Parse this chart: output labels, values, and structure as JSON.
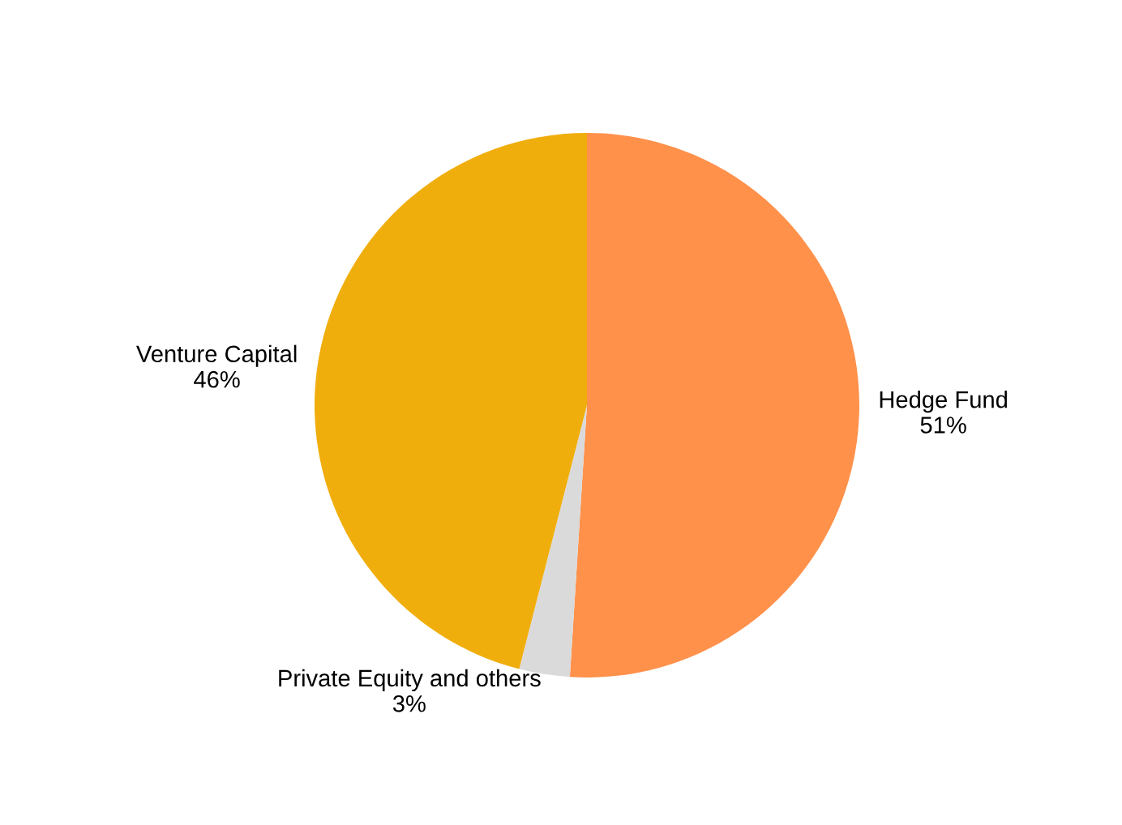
{
  "chart_data": {
    "type": "pie",
    "categories": [
      "Hedge Fund",
      "Private Equity and others",
      "Venture Capital"
    ],
    "values": [
      51,
      3,
      46
    ],
    "value_labels": [
      "51%",
      "3%",
      "46%"
    ],
    "colors": [
      "#ff914b",
      "#dadada",
      "#f0ae0d"
    ]
  }
}
